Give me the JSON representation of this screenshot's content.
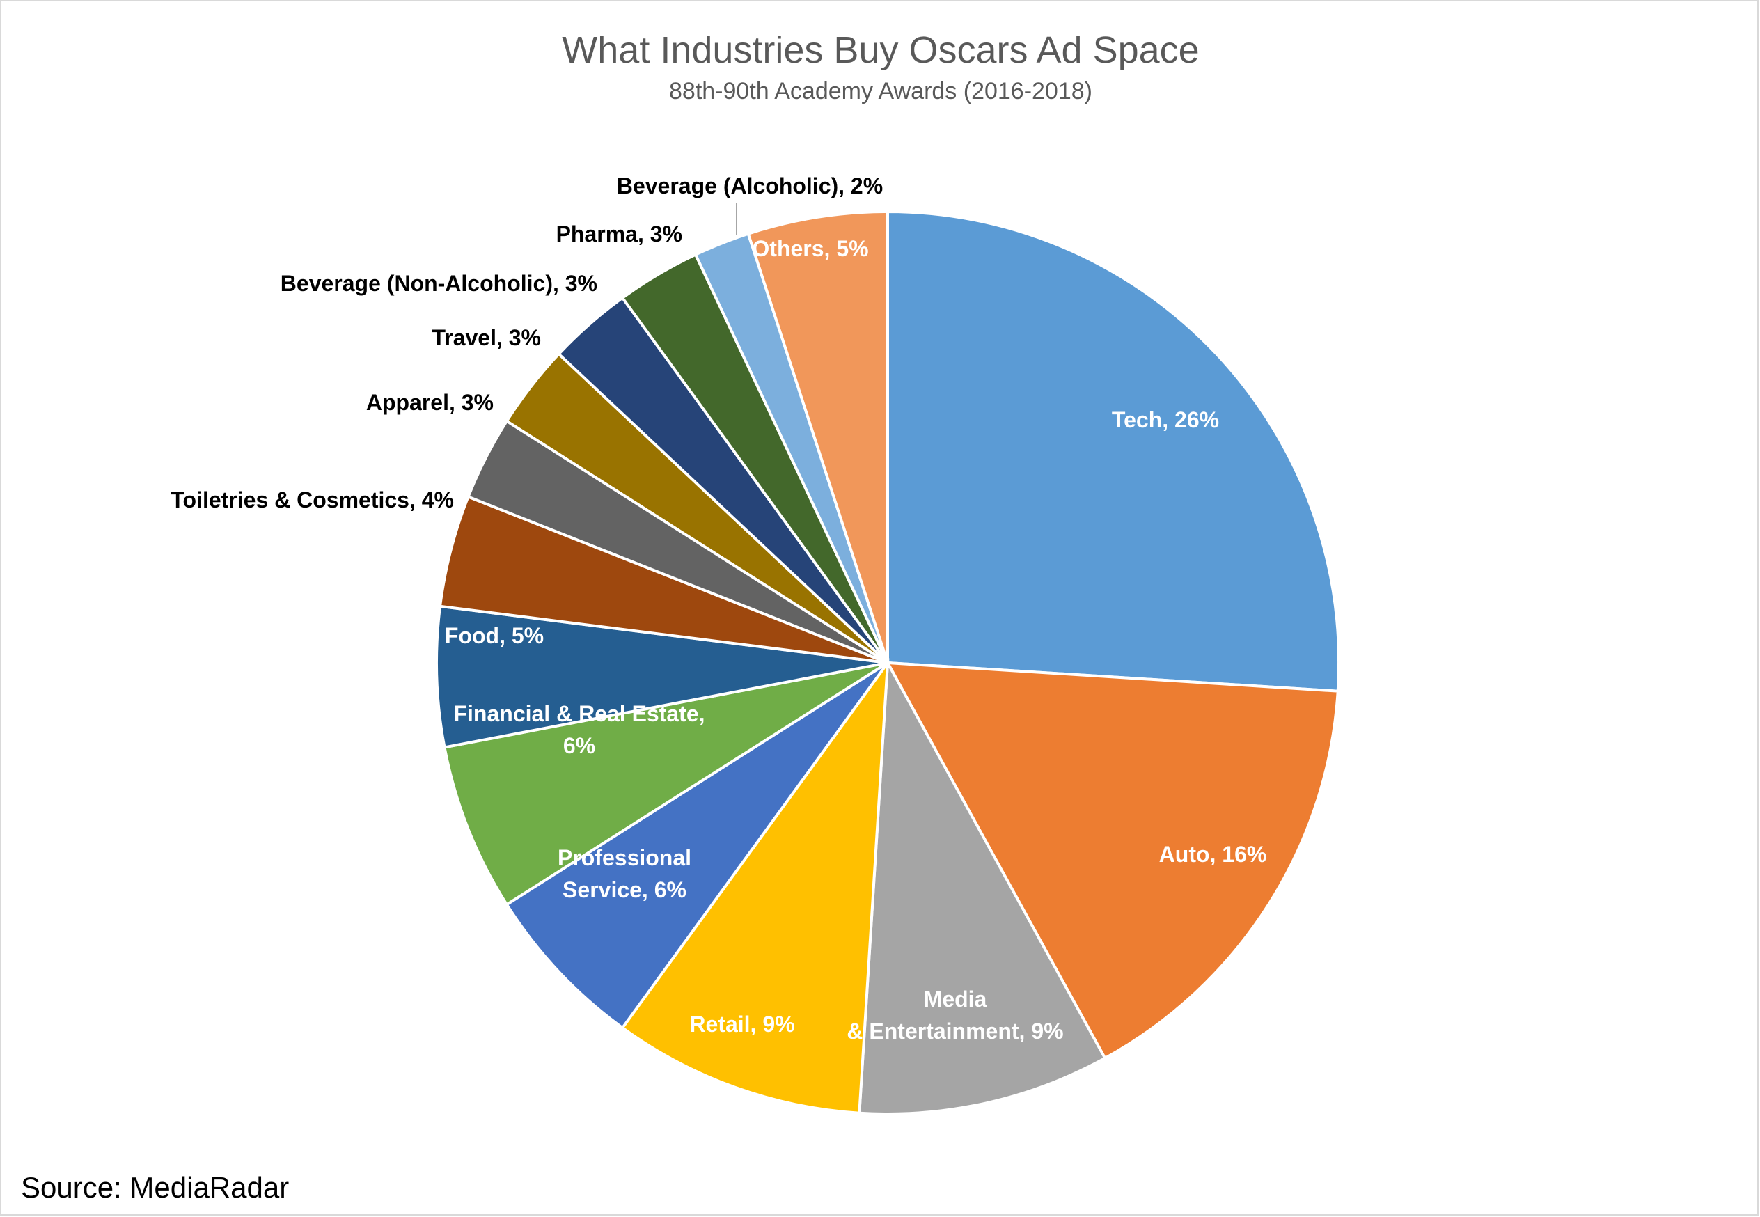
{
  "chart_data": {
    "type": "pie",
    "title": "What Industries Buy Oscars Ad Space",
    "subtitle": "88th-90th Academy Awards (2016-2018)",
    "source": "Source: MediaRadar",
    "series": [
      {
        "name": "Tech",
        "value": 26,
        "label": "Tech, 26%",
        "color": "#5B9BD5"
      },
      {
        "name": "Auto",
        "value": 16,
        "label": "Auto, 16%",
        "color": "#ED7D31"
      },
      {
        "name": "Media & Entertainment",
        "value": 9,
        "label": "Media & Entertainment, 9%",
        "color": "#A5A5A5"
      },
      {
        "name": "Retail",
        "value": 9,
        "label": "Retail, 9%",
        "color": "#FFC000"
      },
      {
        "name": "Professional Service",
        "value": 6,
        "label": "Professional Service, 6%",
        "color": "#4472C4"
      },
      {
        "name": "Financial & Real Estate",
        "value": 6,
        "label": "Financial & Real Estate, 6%",
        "color": "#70AD47"
      },
      {
        "name": "Food",
        "value": 5,
        "label": "Food, 5%",
        "color": "#255E91"
      },
      {
        "name": "Toiletries & Cosmetics",
        "value": 4,
        "label": "Toiletries & Cosmetics, 4%",
        "color": "#9E480E"
      },
      {
        "name": "Apparel",
        "value": 3,
        "label": "Apparel, 3%",
        "color": "#636363"
      },
      {
        "name": "Travel",
        "value": 3,
        "label": "Travel, 3%",
        "color": "#997300"
      },
      {
        "name": "Beverage (Non-Alcoholic)",
        "value": 3,
        "label": "Beverage (Non-Alcoholic), 3%",
        "color": "#264478"
      },
      {
        "name": "Pharma",
        "value": 3,
        "label": "Pharma, 3%",
        "color": "#43682B"
      },
      {
        "name": "Beverage (Alcoholic)",
        "value": 2,
        "label": "Beverage (Alcoholic), 2%",
        "color": "#7CAFDD"
      },
      {
        "name": "Others",
        "value": 5,
        "label": "Others, 5%",
        "color": "#F1975A"
      }
    ]
  }
}
